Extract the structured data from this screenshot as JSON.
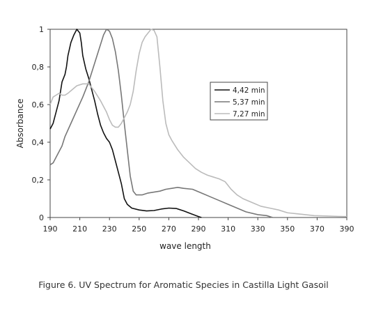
{
  "caption": "Figure 6. UV Spectrum for Aromatic Species in Castilla Light Gasoil",
  "chart_data": {
    "type": "line",
    "title": "",
    "xlabel": "wave length",
    "ylabel": "Absorbance",
    "xlim": [
      190,
      390
    ],
    "ylim": [
      0,
      1
    ],
    "xticks": [
      190,
      210,
      230,
      250,
      270,
      290,
      310,
      330,
      350,
      370,
      390
    ],
    "yticks": [
      {
        "value": 0,
        "label": "0"
      },
      {
        "value": 0.2,
        "label": "0,2"
      },
      {
        "value": 0.4,
        "label": "0,4"
      },
      {
        "value": 0.6,
        "label": "0,6"
      },
      {
        "value": 0.8,
        "label": "0,8"
      },
      {
        "value": 1,
        "label": "1"
      }
    ],
    "grid": false,
    "legend_position": "center-right",
    "series": [
      {
        "name": "4,42 min",
        "color": "#111111",
        "points": [
          [
            190,
            0.47
          ],
          [
            192,
            0.5
          ],
          [
            194,
            0.56
          ],
          [
            196,
            0.62
          ],
          [
            198,
            0.72
          ],
          [
            200,
            0.76
          ],
          [
            201,
            0.8
          ],
          [
            202,
            0.86
          ],
          [
            204,
            0.93
          ],
          [
            206,
            0.97
          ],
          [
            208,
            1.0
          ],
          [
            210,
            0.98
          ],
          [
            211,
            0.93
          ],
          [
            212,
            0.86
          ],
          [
            214,
            0.79
          ],
          [
            216,
            0.74
          ],
          [
            218,
            0.68
          ],
          [
            220,
            0.62
          ],
          [
            222,
            0.55
          ],
          [
            224,
            0.49
          ],
          [
            226,
            0.45
          ],
          [
            228,
            0.42
          ],
          [
            230,
            0.4
          ],
          [
            232,
            0.36
          ],
          [
            234,
            0.3
          ],
          [
            236,
            0.24
          ],
          [
            238,
            0.18
          ],
          [
            239,
            0.14
          ],
          [
            240,
            0.1
          ],
          [
            242,
            0.07
          ],
          [
            245,
            0.05
          ],
          [
            250,
            0.04
          ],
          [
            255,
            0.035
          ],
          [
            260,
            0.037
          ],
          [
            265,
            0.045
          ],
          [
            270,
            0.05
          ],
          [
            275,
            0.048
          ],
          [
            280,
            0.035
          ],
          [
            285,
            0.02
          ],
          [
            290,
            0.005
          ],
          [
            292,
            0.0
          ]
        ]
      },
      {
        "name": "5,37 min",
        "color": "#777777",
        "points": [
          [
            190,
            0.28
          ],
          [
            192,
            0.29
          ],
          [
            194,
            0.32
          ],
          [
            196,
            0.35
          ],
          [
            198,
            0.38
          ],
          [
            200,
            0.43
          ],
          [
            204,
            0.5
          ],
          [
            208,
            0.57
          ],
          [
            212,
            0.64
          ],
          [
            216,
            0.72
          ],
          [
            220,
            0.82
          ],
          [
            224,
            0.92
          ],
          [
            226,
            0.97
          ],
          [
            228,
            1.0
          ],
          [
            230,
            0.99
          ],
          [
            232,
            0.95
          ],
          [
            234,
            0.88
          ],
          [
            236,
            0.78
          ],
          [
            238,
            0.65
          ],
          [
            240,
            0.5
          ],
          [
            242,
            0.36
          ],
          [
            244,
            0.22
          ],
          [
            246,
            0.14
          ],
          [
            248,
            0.12
          ],
          [
            252,
            0.12
          ],
          [
            256,
            0.13
          ],
          [
            260,
            0.135
          ],
          [
            264,
            0.14
          ],
          [
            268,
            0.15
          ],
          [
            272,
            0.155
          ],
          [
            276,
            0.16
          ],
          [
            280,
            0.155
          ],
          [
            286,
            0.15
          ],
          [
            292,
            0.13
          ],
          [
            298,
            0.11
          ],
          [
            304,
            0.09
          ],
          [
            310,
            0.07
          ],
          [
            316,
            0.05
          ],
          [
            322,
            0.03
          ],
          [
            330,
            0.015
          ],
          [
            336,
            0.01
          ],
          [
            340,
            0.0
          ]
        ]
      },
      {
        "name": "7,27 min",
        "color": "#bbbbbb",
        "points": [
          [
            190,
            0.6
          ],
          [
            192,
            0.64
          ],
          [
            194,
            0.65
          ],
          [
            196,
            0.66
          ],
          [
            198,
            0.65
          ],
          [
            200,
            0.65
          ],
          [
            202,
            0.66
          ],
          [
            205,
            0.68
          ],
          [
            208,
            0.7
          ],
          [
            212,
            0.71
          ],
          [
            216,
            0.71
          ],
          [
            220,
            0.67
          ],
          [
            224,
            0.62
          ],
          [
            228,
            0.56
          ],
          [
            230,
            0.52
          ],
          [
            232,
            0.49
          ],
          [
            234,
            0.48
          ],
          [
            236,
            0.48
          ],
          [
            238,
            0.5
          ],
          [
            240,
            0.53
          ],
          [
            242,
            0.56
          ],
          [
            244,
            0.6
          ],
          [
            246,
            0.67
          ],
          [
            248,
            0.78
          ],
          [
            250,
            0.87
          ],
          [
            252,
            0.93
          ],
          [
            254,
            0.96
          ],
          [
            256,
            0.98
          ],
          [
            258,
            1.0
          ],
          [
            260,
            0.995
          ],
          [
            262,
            0.96
          ],
          [
            264,
            0.8
          ],
          [
            266,
            0.62
          ],
          [
            268,
            0.5
          ],
          [
            270,
            0.44
          ],
          [
            272,
            0.41
          ],
          [
            276,
            0.36
          ],
          [
            280,
            0.32
          ],
          [
            284,
            0.29
          ],
          [
            288,
            0.26
          ],
          [
            292,
            0.24
          ],
          [
            296,
            0.225
          ],
          [
            300,
            0.215
          ],
          [
            304,
            0.205
          ],
          [
            308,
            0.19
          ],
          [
            312,
            0.15
          ],
          [
            316,
            0.12
          ],
          [
            320,
            0.1
          ],
          [
            326,
            0.08
          ],
          [
            332,
            0.06
          ],
          [
            338,
            0.05
          ],
          [
            344,
            0.04
          ],
          [
            350,
            0.025
          ],
          [
            356,
            0.02
          ],
          [
            362,
            0.015
          ],
          [
            368,
            0.01
          ],
          [
            376,
            0.008
          ],
          [
            384,
            0.006
          ],
          [
            390,
            0.005
          ]
        ]
      }
    ]
  }
}
